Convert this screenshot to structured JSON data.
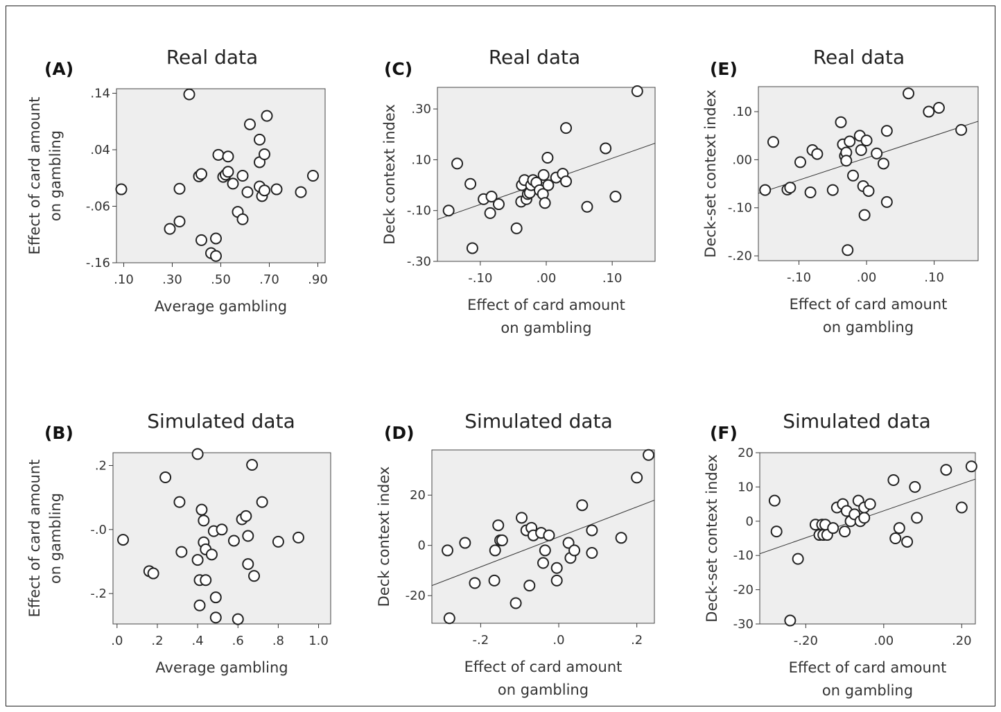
{
  "chart_data": [
    {
      "panel": "(A)",
      "title": "Real data",
      "type": "scatter",
      "xlabel": "Average gambling",
      "ylabel": [
        "Effect of card amount",
        "on gambling"
      ],
      "xlim": [
        0.07,
        0.93
      ],
      "ylim": [
        -0.16,
        0.148
      ],
      "xticks": [
        0.1,
        0.3,
        0.5,
        0.7,
        0.9
      ],
      "xticklabels": [
        ".10",
        ".30",
        ".50",
        ".70",
        ".90"
      ],
      "yticks": [
        -0.16,
        -0.06,
        0.04,
        0.14
      ],
      "yticklabels": [
        "-.16",
        "-.06",
        ".04",
        ".14"
      ],
      "fit_line": null,
      "points": [
        {
          "x": 0.09,
          "y": -0.03
        },
        {
          "x": 0.29,
          "y": -0.1
        },
        {
          "x": 0.33,
          "y": -0.029
        },
        {
          "x": 0.33,
          "y": -0.087
        },
        {
          "x": 0.37,
          "y": 0.138
        },
        {
          "x": 0.41,
          "y": -0.007
        },
        {
          "x": 0.42,
          "y": -0.003
        },
        {
          "x": 0.42,
          "y": -0.12
        },
        {
          "x": 0.46,
          "y": -0.143
        },
        {
          "x": 0.48,
          "y": -0.117
        },
        {
          "x": 0.48,
          "y": -0.148
        },
        {
          "x": 0.49,
          "y": 0.031
        },
        {
          "x": 0.51,
          "y": -0.008
        },
        {
          "x": 0.52,
          "y": -0.004
        },
        {
          "x": 0.53,
          "y": 0.028
        },
        {
          "x": 0.53,
          "y": 0.001
        },
        {
          "x": 0.55,
          "y": -0.02
        },
        {
          "x": 0.57,
          "y": -0.07
        },
        {
          "x": 0.59,
          "y": -0.006
        },
        {
          "x": 0.59,
          "y": -0.083
        },
        {
          "x": 0.61,
          "y": -0.035
        },
        {
          "x": 0.62,
          "y": 0.085
        },
        {
          "x": 0.66,
          "y": 0.018
        },
        {
          "x": 0.66,
          "y": -0.025
        },
        {
          "x": 0.66,
          "y": 0.058
        },
        {
          "x": 0.67,
          "y": -0.042
        },
        {
          "x": 0.68,
          "y": 0.032
        },
        {
          "x": 0.68,
          "y": -0.032
        },
        {
          "x": 0.69,
          "y": 0.1
        },
        {
          "x": 0.73,
          "y": -0.03
        },
        {
          "x": 0.83,
          "y": -0.035
        },
        {
          "x": 0.88,
          "y": -0.006
        }
      ]
    },
    {
      "panel": "(B)",
      "title": "Simulated data",
      "type": "scatter",
      "xlabel": "Average gambling",
      "ylabel": [
        "Effect of card amount",
        "on gambling"
      ],
      "xlim": [
        -0.02,
        1.06
      ],
      "ylim": [
        -0.295,
        0.24
      ],
      "xticks": [
        0.0,
        0.2,
        0.4,
        0.6,
        0.8,
        1.0
      ],
      "xticklabels": [
        ".0",
        ".2",
        ".4",
        ".6",
        ".8",
        "1.0"
      ],
      "yticks": [
        -0.2,
        0.0,
        0.2
      ],
      "yticklabels": [
        "-.2",
        "-.0",
        ".2"
      ],
      "fit_line": null,
      "points": [
        {
          "x": 0.03,
          "y": -0.032
        },
        {
          "x": 0.16,
          "y": -0.13
        },
        {
          "x": 0.18,
          "y": -0.137
        },
        {
          "x": 0.24,
          "y": 0.163
        },
        {
          "x": 0.31,
          "y": 0.086
        },
        {
          "x": 0.32,
          "y": -0.07
        },
        {
          "x": 0.4,
          "y": 0.236
        },
        {
          "x": 0.4,
          "y": -0.095
        },
        {
          "x": 0.41,
          "y": -0.158
        },
        {
          "x": 0.41,
          "y": -0.237
        },
        {
          "x": 0.42,
          "y": 0.062
        },
        {
          "x": 0.43,
          "y": 0.028
        },
        {
          "x": 0.43,
          "y": -0.04
        },
        {
          "x": 0.44,
          "y": -0.062
        },
        {
          "x": 0.44,
          "y": -0.158
        },
        {
          "x": 0.47,
          "y": -0.078
        },
        {
          "x": 0.48,
          "y": -0.005
        },
        {
          "x": 0.49,
          "y": -0.212
        },
        {
          "x": 0.49,
          "y": -0.275
        },
        {
          "x": 0.52,
          "y": 0.0
        },
        {
          "x": 0.58,
          "y": -0.035
        },
        {
          "x": 0.6,
          "y": -0.28
        },
        {
          "x": 0.62,
          "y": 0.032
        },
        {
          "x": 0.64,
          "y": 0.042
        },
        {
          "x": 0.65,
          "y": -0.02
        },
        {
          "x": 0.65,
          "y": -0.108
        },
        {
          "x": 0.67,
          "y": 0.202
        },
        {
          "x": 0.68,
          "y": -0.145
        },
        {
          "x": 0.72,
          "y": 0.086
        },
        {
          "x": 0.8,
          "y": -0.038
        },
        {
          "x": 0.9,
          "y": -0.025
        }
      ]
    },
    {
      "panel": "(C)",
      "title": "Real data",
      "type": "scatter",
      "xlabel": [
        "Effect of card amount",
        "on gambling"
      ],
      "ylabel": "Deck context index",
      "xlim": [
        -0.165,
        0.165
      ],
      "ylim": [
        -0.3,
        0.385
      ],
      "xticks": [
        -0.1,
        0.0,
        0.1
      ],
      "xticklabels": [
        "-.10",
        ".00",
        ".10"
      ],
      "yticks": [
        -0.3,
        -0.1,
        0.1,
        0.3
      ],
      "yticklabels": [
        "-.30",
        "-.10",
        ".10",
        ".30"
      ],
      "fit_line": {
        "x": [
          -0.165,
          0.165
        ],
        "y": [
          -0.135,
          0.165
        ]
      },
      "points": [
        {
          "x": -0.148,
          "y": -0.1
        },
        {
          "x": -0.135,
          "y": 0.085
        },
        {
          "x": -0.115,
          "y": 0.005
        },
        {
          "x": -0.112,
          "y": -0.248
        },
        {
          "x": -0.095,
          "y": -0.055
        },
        {
          "x": -0.085,
          "y": -0.11
        },
        {
          "x": -0.083,
          "y": -0.045
        },
        {
          "x": -0.072,
          "y": -0.075
        },
        {
          "x": -0.045,
          "y": -0.17
        },
        {
          "x": -0.038,
          "y": -0.065
        },
        {
          "x": -0.037,
          "y": 0.0
        },
        {
          "x": -0.033,
          "y": 0.02
        },
        {
          "x": -0.03,
          "y": -0.055
        },
        {
          "x": -0.028,
          "y": -0.035
        },
        {
          "x": -0.025,
          "y": -0.03
        },
        {
          "x": -0.023,
          "y": 0.0
        },
        {
          "x": -0.02,
          "y": 0.02
        },
        {
          "x": -0.015,
          "y": 0.01
        },
        {
          "x": -0.01,
          "y": -0.02
        },
        {
          "x": -0.005,
          "y": -0.035
        },
        {
          "x": -0.004,
          "y": 0.04
        },
        {
          "x": -0.002,
          "y": -0.07
        },
        {
          "x": 0.002,
          "y": 0.108
        },
        {
          "x": 0.003,
          "y": 0.0
        },
        {
          "x": 0.015,
          "y": 0.03
        },
        {
          "x": 0.025,
          "y": 0.045
        },
        {
          "x": 0.03,
          "y": 0.015
        },
        {
          "x": 0.03,
          "y": 0.225
        },
        {
          "x": 0.062,
          "y": -0.085
        },
        {
          "x": 0.09,
          "y": 0.145
        },
        {
          "x": 0.105,
          "y": -0.045
        },
        {
          "x": 0.138,
          "y": 0.37
        }
      ]
    },
    {
      "panel": "(D)",
      "title": "Simulated data",
      "type": "scatter",
      "xlabel": [
        "Effect of card amount",
        "on gambling"
      ],
      "ylabel": "Deck context index",
      "xlim": [
        -0.325,
        0.245
      ],
      "ylim": [
        -31,
        38
      ],
      "xticks": [
        -0.2,
        0.0,
        0.2
      ],
      "xticklabels": [
        "-.2",
        ".0",
        ".2"
      ],
      "yticks": [
        -20,
        0,
        20
      ],
      "yticklabels": [
        "-20",
        "0",
        "20"
      ],
      "fit_line": {
        "x": [
          -0.325,
          0.245
        ],
        "y": [
          -16,
          18
        ]
      },
      "points": [
        {
          "x": -0.285,
          "y": -2
        },
        {
          "x": -0.28,
          "y": -29
        },
        {
          "x": -0.24,
          "y": 1
        },
        {
          "x": -0.215,
          "y": -15
        },
        {
          "x": -0.165,
          "y": -14
        },
        {
          "x": -0.163,
          "y": -2
        },
        {
          "x": -0.155,
          "y": 8
        },
        {
          "x": -0.15,
          "y": 2
        },
        {
          "x": -0.145,
          "y": 2
        },
        {
          "x": -0.11,
          "y": -23
        },
        {
          "x": -0.095,
          "y": 11
        },
        {
          "x": -0.083,
          "y": 6
        },
        {
          "x": -0.075,
          "y": -16
        },
        {
          "x": -0.07,
          "y": 7
        },
        {
          "x": -0.065,
          "y": 4
        },
        {
          "x": -0.045,
          "y": 5
        },
        {
          "x": -0.04,
          "y": -7
        },
        {
          "x": -0.035,
          "y": -2
        },
        {
          "x": -0.025,
          "y": 4
        },
        {
          "x": -0.005,
          "y": -9
        },
        {
          "x": -0.005,
          "y": -14
        },
        {
          "x": 0.025,
          "y": 1
        },
        {
          "x": 0.03,
          "y": -5
        },
        {
          "x": 0.04,
          "y": -2
        },
        {
          "x": 0.06,
          "y": 16
        },
        {
          "x": 0.085,
          "y": 6
        },
        {
          "x": 0.085,
          "y": -3
        },
        {
          "x": 0.16,
          "y": 3
        },
        {
          "x": 0.2,
          "y": 27
        },
        {
          "x": 0.23,
          "y": 36
        }
      ]
    },
    {
      "panel": "(E)",
      "title": "Real data",
      "type": "scatter",
      "xlabel": [
        "Effect of card amount",
        "on gambling"
      ],
      "ylabel": "Deck-set context index",
      "xlim": [
        -0.16,
        0.165
      ],
      "ylim": [
        -0.21,
        0.152
      ],
      "xticks": [
        -0.1,
        0.0,
        0.1
      ],
      "xticklabels": [
        "-.10",
        ".00",
        ".10"
      ],
      "yticks": [
        -0.2,
        -0.1,
        0.0,
        0.1
      ],
      "yticklabels": [
        "-.20",
        "-.10",
        ".00",
        ".10"
      ],
      "fit_line": {
        "x": [
          -0.16,
          0.165
        ],
        "y": [
          -0.07,
          0.08
        ]
      },
      "points": [
        {
          "x": -0.15,
          "y": -0.063
        },
        {
          "x": -0.138,
          "y": 0.037
        },
        {
          "x": -0.117,
          "y": -0.062
        },
        {
          "x": -0.113,
          "y": -0.058
        },
        {
          "x": -0.098,
          "y": -0.005
        },
        {
          "x": -0.083,
          "y": -0.068
        },
        {
          "x": -0.08,
          "y": 0.02
        },
        {
          "x": -0.073,
          "y": 0.012
        },
        {
          "x": -0.05,
          "y": -0.063
        },
        {
          "x": -0.038,
          "y": 0.078
        },
        {
          "x": -0.035,
          "y": 0.032
        },
        {
          "x": -0.032,
          "y": 0.008
        },
        {
          "x": -0.03,
          "y": 0.015
        },
        {
          "x": -0.03,
          "y": -0.002
        },
        {
          "x": -0.028,
          "y": -0.188
        },
        {
          "x": -0.025,
          "y": 0.038
        },
        {
          "x": -0.02,
          "y": -0.033
        },
        {
          "x": -0.01,
          "y": 0.05
        },
        {
          "x": -0.008,
          "y": 0.02
        },
        {
          "x": -0.005,
          "y": -0.055
        },
        {
          "x": -0.003,
          "y": -0.115
        },
        {
          "x": 0.0,
          "y": 0.04
        },
        {
          "x": 0.003,
          "y": -0.065
        },
        {
          "x": 0.015,
          "y": 0.013
        },
        {
          "x": 0.025,
          "y": -0.008
        },
        {
          "x": 0.03,
          "y": -0.088
        },
        {
          "x": 0.03,
          "y": 0.06
        },
        {
          "x": 0.062,
          "y": 0.138
        },
        {
          "x": 0.092,
          "y": 0.1
        },
        {
          "x": 0.107,
          "y": 0.108
        },
        {
          "x": 0.14,
          "y": 0.062
        }
      ]
    },
    {
      "panel": "(F)",
      "title": "Simulated data",
      "type": "scatter",
      "xlabel": [
        "Effect of card amount",
        "on gambling"
      ],
      "ylabel": "Deck-set context index",
      "xlim": [
        -0.318,
        0.235
      ],
      "ylim": [
        -30,
        20
      ],
      "xticks": [
        -0.2,
        0.0,
        0.2
      ],
      "xticklabels": [
        "-.20",
        ".00",
        ".20"
      ],
      "yticks": [
        -30,
        -20,
        -10,
        0,
        10,
        20
      ],
      "yticklabels": [
        "-30",
        "-20",
        "-10",
        "0",
        "10",
        "20"
      ],
      "fit_line": {
        "x": [
          -0.318,
          0.235
        ],
        "y": [
          -9.5,
          12.3
        ]
      },
      "points": [
        {
          "x": -0.28,
          "y": 6
        },
        {
          "x": -0.275,
          "y": -3
        },
        {
          "x": -0.24,
          "y": -29
        },
        {
          "x": -0.22,
          "y": -11
        },
        {
          "x": -0.175,
          "y": -1
        },
        {
          "x": -0.165,
          "y": -4
        },
        {
          "x": -0.158,
          "y": -1
        },
        {
          "x": -0.155,
          "y": -4
        },
        {
          "x": -0.15,
          "y": -1
        },
        {
          "x": -0.145,
          "y": -4
        },
        {
          "x": -0.13,
          "y": -2
        },
        {
          "x": -0.12,
          "y": 4
        },
        {
          "x": -0.105,
          "y": 5
        },
        {
          "x": -0.1,
          "y": -3
        },
        {
          "x": -0.095,
          "y": 3
        },
        {
          "x": -0.085,
          "y": 0
        },
        {
          "x": -0.075,
          "y": 2
        },
        {
          "x": -0.065,
          "y": 6
        },
        {
          "x": -0.06,
          "y": 0
        },
        {
          "x": -0.05,
          "y": 1
        },
        {
          "x": -0.05,
          "y": 4
        },
        {
          "x": -0.035,
          "y": 5
        },
        {
          "x": 0.025,
          "y": 12
        },
        {
          "x": 0.03,
          "y": -5
        },
        {
          "x": 0.04,
          "y": -2
        },
        {
          "x": 0.06,
          "y": -6
        },
        {
          "x": 0.08,
          "y": 10
        },
        {
          "x": 0.085,
          "y": 1
        },
        {
          "x": 0.16,
          "y": 15
        },
        {
          "x": 0.2,
          "y": 4
        },
        {
          "x": 0.225,
          "y": 16
        }
      ]
    }
  ]
}
